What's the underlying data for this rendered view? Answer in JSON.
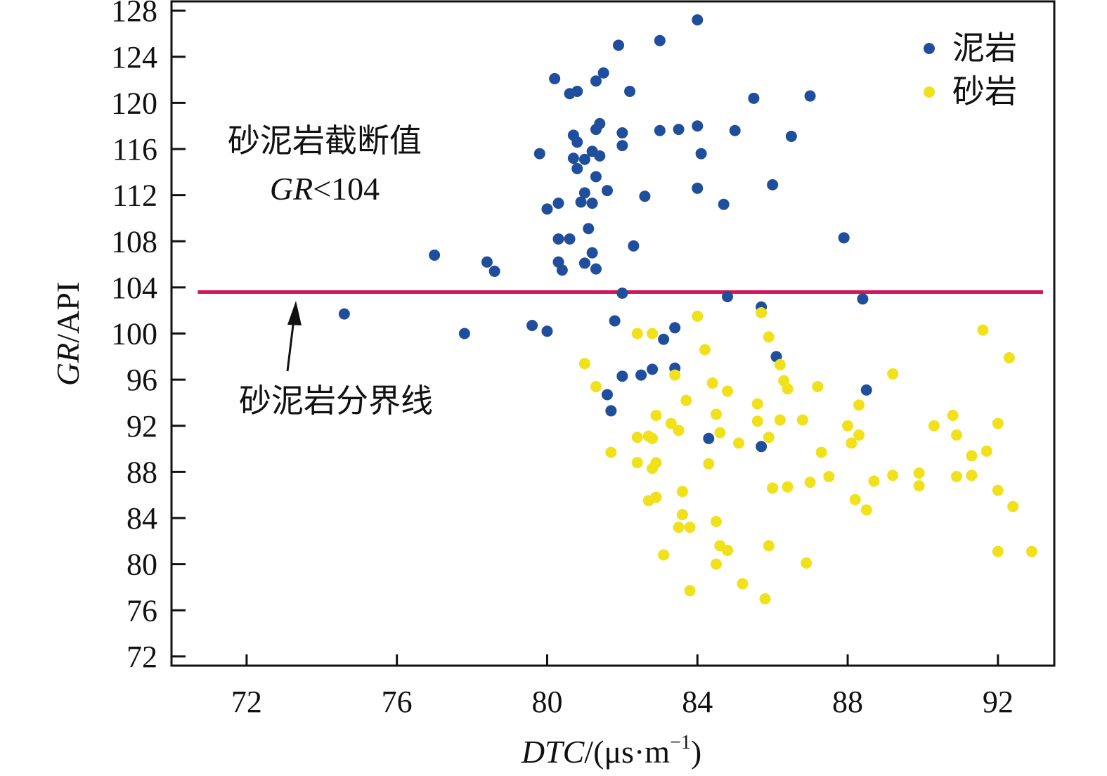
{
  "chart_data": {
    "type": "scatter",
    "xlabel": {
      "italic": "DTC",
      "rest": "/(μs·m",
      "sup": "−1",
      "close": ")"
    },
    "ylabel": {
      "italic": "GR",
      "rest": "/API"
    },
    "xlim": [
      70,
      93.5
    ],
    "ylim": [
      71.2,
      128.8
    ],
    "xticks": [
      72,
      76,
      80,
      84,
      88,
      92
    ],
    "yticks": [
      72,
      76,
      80,
      84,
      88,
      92,
      96,
      100,
      104,
      108,
      112,
      116,
      120,
      124,
      128
    ],
    "grid": false,
    "legend_position": "top-right",
    "threshold": {
      "value": 103.6,
      "x_range": [
        70.7,
        93.2
      ],
      "color": "#d4145a"
    },
    "annotations": {
      "cutoff_title": "砂泥岩截断值",
      "cutoff_expr_italic": "GR",
      "cutoff_expr_rest": "<104",
      "boundary_label": "砂泥岩分界线"
    },
    "series": [
      {
        "name": "泥岩",
        "color": "#1f4e9c",
        "points": [
          [
            84.0,
            127.2
          ],
          [
            81.9,
            125.0
          ],
          [
            83.0,
            125.4
          ],
          [
            81.5,
            122.6
          ],
          [
            80.2,
            122.1
          ],
          [
            81.3,
            121.9
          ],
          [
            80.6,
            120.8
          ],
          [
            80.8,
            121.0
          ],
          [
            82.2,
            121.0
          ],
          [
            85.5,
            120.4
          ],
          [
            87.0,
            120.6
          ],
          [
            81.4,
            118.2
          ],
          [
            81.3,
            117.7
          ],
          [
            82.0,
            117.4
          ],
          [
            80.7,
            117.2
          ],
          [
            80.8,
            116.6
          ],
          [
            83.0,
            117.6
          ],
          [
            83.5,
            117.7
          ],
          [
            84.0,
            118.0
          ],
          [
            85.0,
            117.6
          ],
          [
            86.5,
            117.1
          ],
          [
            82.0,
            116.3
          ],
          [
            79.8,
            115.6
          ],
          [
            80.7,
            115.2
          ],
          [
            81.0,
            115.1
          ],
          [
            81.2,
            115.8
          ],
          [
            81.4,
            115.4
          ],
          [
            84.1,
            115.6
          ],
          [
            80.8,
            114.3
          ],
          [
            81.3,
            113.6
          ],
          [
            86.0,
            112.9
          ],
          [
            81.6,
            112.4
          ],
          [
            81.0,
            112.2
          ],
          [
            84.0,
            112.6
          ],
          [
            82.6,
            111.9
          ],
          [
            80.3,
            111.3
          ],
          [
            80.9,
            111.4
          ],
          [
            81.2,
            111.3
          ],
          [
            84.7,
            111.2
          ],
          [
            80.0,
            110.8
          ],
          [
            81.1,
            109.1
          ],
          [
            80.3,
            108.2
          ],
          [
            80.6,
            108.2
          ],
          [
            87.9,
            108.3
          ],
          [
            77.0,
            106.8
          ],
          [
            82.3,
            107.6
          ],
          [
            81.2,
            107.0
          ],
          [
            78.4,
            106.2
          ],
          [
            80.3,
            106.2
          ],
          [
            81.0,
            106.1
          ],
          [
            78.6,
            105.4
          ],
          [
            80.4,
            105.5
          ],
          [
            81.3,
            105.6
          ],
          [
            82.0,
            103.5
          ],
          [
            84.8,
            103.2
          ],
          [
            88.4,
            103.0
          ],
          [
            74.6,
            101.7
          ],
          [
            85.7,
            102.3
          ],
          [
            81.8,
            101.1
          ],
          [
            79.6,
            100.7
          ],
          [
            83.4,
            100.5
          ],
          [
            77.8,
            100.0
          ],
          [
            80.0,
            100.2
          ],
          [
            83.1,
            99.5
          ],
          [
            86.1,
            98.0
          ],
          [
            83.4,
            97.0
          ],
          [
            82.8,
            96.9
          ],
          [
            82.5,
            96.4
          ],
          [
            82.0,
            96.3
          ],
          [
            88.5,
            95.1
          ],
          [
            81.6,
            94.7
          ],
          [
            81.7,
            93.3
          ],
          [
            84.3,
            90.9
          ],
          [
            85.7,
            90.2
          ]
        ]
      },
      {
        "name": "砂岩",
        "color": "#f0e11a",
        "points": [
          [
            85.7,
            101.8
          ],
          [
            84.0,
            101.5
          ],
          [
            82.4,
            100.0
          ],
          [
            82.8,
            100.0
          ],
          [
            85.9,
            99.7
          ],
          [
            84.2,
            98.6
          ],
          [
            81.0,
            97.4
          ],
          [
            86.2,
            97.3
          ],
          [
            83.4,
            96.4
          ],
          [
            89.2,
            96.5
          ],
          [
            86.3,
            95.9
          ],
          [
            81.3,
            95.4
          ],
          [
            84.4,
            95.7
          ],
          [
            86.4,
            95.2
          ],
          [
            87.2,
            95.4
          ],
          [
            84.8,
            95.0
          ],
          [
            91.6,
            100.3
          ],
          [
            92.3,
            97.9
          ],
          [
            83.7,
            94.2
          ],
          [
            85.6,
            93.9
          ],
          [
            88.3,
            93.8
          ],
          [
            82.9,
            92.9
          ],
          [
            84.5,
            93.0
          ],
          [
            90.8,
            92.9
          ],
          [
            83.3,
            92.2
          ],
          [
            85.6,
            92.4
          ],
          [
            86.2,
            92.5
          ],
          [
            86.8,
            92.5
          ],
          [
            88.0,
            92.0
          ],
          [
            90.3,
            92.0
          ],
          [
            92.0,
            92.2
          ],
          [
            83.5,
            91.6
          ],
          [
            84.6,
            91.4
          ],
          [
            82.4,
            91.0
          ],
          [
            82.7,
            91.1
          ],
          [
            82.8,
            90.9
          ],
          [
            85.9,
            91.0
          ],
          [
            88.3,
            91.2
          ],
          [
            90.9,
            91.2
          ],
          [
            85.1,
            90.5
          ],
          [
            88.1,
            90.5
          ],
          [
            81.7,
            89.7
          ],
          [
            87.3,
            89.7
          ],
          [
            91.3,
            89.4
          ],
          [
            91.7,
            89.8
          ],
          [
            82.4,
            88.8
          ],
          [
            82.9,
            88.8
          ],
          [
            84.3,
            88.7
          ],
          [
            82.8,
            88.3
          ],
          [
            86.0,
            86.6
          ],
          [
            86.4,
            86.7
          ],
          [
            87.0,
            87.1
          ],
          [
            87.5,
            87.6
          ],
          [
            88.7,
            87.2
          ],
          [
            89.2,
            87.7
          ],
          [
            89.9,
            87.9
          ],
          [
            89.9,
            86.8
          ],
          [
            90.9,
            87.6
          ],
          [
            91.3,
            87.7
          ],
          [
            92.0,
            86.4
          ],
          [
            83.6,
            86.3
          ],
          [
            82.9,
            85.8
          ],
          [
            82.7,
            85.5
          ],
          [
            88.2,
            85.6
          ],
          [
            88.5,
            84.7
          ],
          [
            92.4,
            85.0
          ],
          [
            83.6,
            84.3
          ],
          [
            84.5,
            83.7
          ],
          [
            83.5,
            83.2
          ],
          [
            83.8,
            83.2
          ],
          [
            84.6,
            81.6
          ],
          [
            84.8,
            81.2
          ],
          [
            85.9,
            81.6
          ],
          [
            83.1,
            80.8
          ],
          [
            92.0,
            81.1
          ],
          [
            92.9,
            81.1
          ],
          [
            84.5,
            80.0
          ],
          [
            86.9,
            80.1
          ],
          [
            85.2,
            78.3
          ],
          [
            83.8,
            77.7
          ],
          [
            85.8,
            77.0
          ]
        ]
      }
    ]
  }
}
